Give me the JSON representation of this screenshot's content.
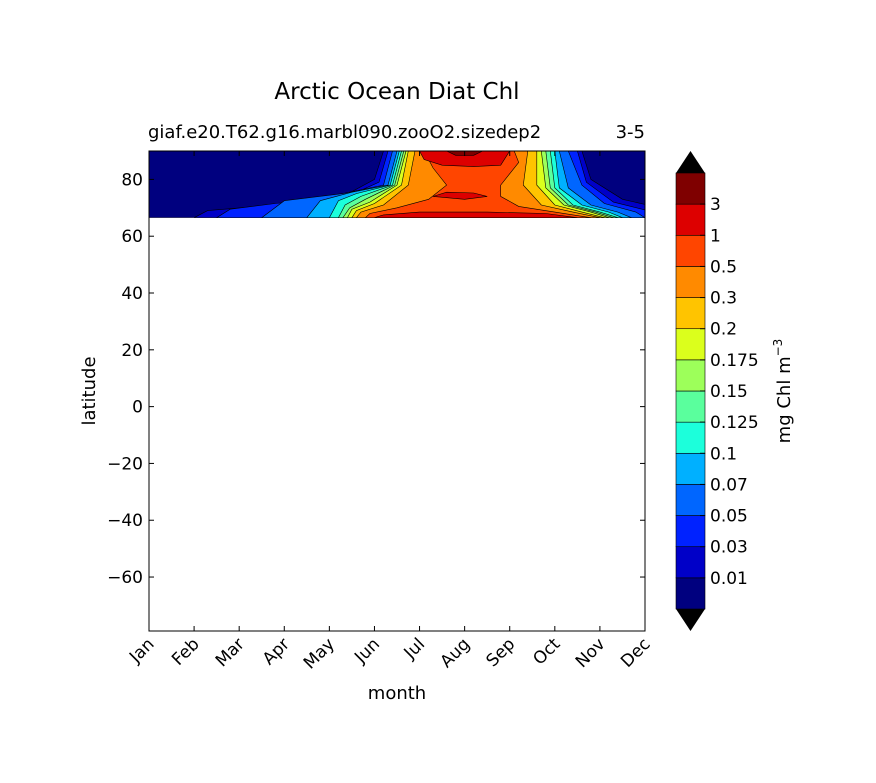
{
  "chart_data": {
    "type": "heatmap",
    "title": "Arctic Ocean Diat Chl",
    "subtitle_left": "giaf.e20.T62.g16.marbl090.zooO2.sizedep2",
    "subtitle_right": "3-5",
    "xlabel": "month",
    "ylabel": "latitude",
    "colorbar_label": "mg Chl m",
    "colorbar_label_exp": "−3",
    "x_ticks": [
      "Jan",
      "Feb",
      "Mar",
      "Apr",
      "May",
      "Jun",
      "Jul",
      "Aug",
      "Sep",
      "Oct",
      "Nov",
      "Dec"
    ],
    "y_ticks": [
      "80",
      "60",
      "40",
      "20",
      "0",
      "−20",
      "−40",
      "−60"
    ],
    "y_tick_values": [
      80,
      60,
      40,
      20,
      0,
      -20,
      -40,
      -60
    ],
    "ylim": [
      -79,
      90
    ],
    "data_lat_range": [
      66.5,
      90
    ],
    "levels": [
      "0.01",
      "0.03",
      "0.05",
      "0.07",
      "0.1",
      "0.125",
      "0.15",
      "0.175",
      "0.2",
      "0.3",
      "0.5",
      "1",
      "3"
    ],
    "colors": [
      "#00007f",
      "#0000c8",
      "#0022ff",
      "#0066ff",
      "#00b0ff",
      "#1cffdb",
      "#5aff9d",
      "#9dff5a",
      "#dbff1c",
      "#ffc400",
      "#ff8a00",
      "#ff4500",
      "#dd0000",
      "#7f0000"
    ],
    "extend_colors": {
      "under": "#000000",
      "over": "#000000"
    },
    "contours": [
      {
        "level_index": 0,
        "points": [
          [
            0,
            66.5
          ],
          [
            12,
            66.5
          ],
          [
            12,
            90
          ],
          [
            0,
            90
          ]
        ]
      },
      {
        "level_index": 1,
        "points": [
          [
            1,
            66.5
          ],
          [
            11.6,
            66.5
          ],
          [
            11.6,
            69
          ],
          [
            10.5,
            73
          ],
          [
            9.8,
            80
          ],
          [
            9.6,
            90
          ],
          [
            5.2,
            90
          ],
          [
            5.0,
            80
          ],
          [
            4.3,
            74
          ],
          [
            2.8,
            71
          ],
          [
            1.3,
            69
          ]
        ]
      },
      {
        "level_index": 2,
        "points": [
          [
            1.5,
            66.5
          ],
          [
            11.3,
            66.5
          ],
          [
            11.2,
            68.5
          ],
          [
            10.3,
            72
          ],
          [
            9.7,
            79
          ],
          [
            9.5,
            90
          ],
          [
            5.3,
            90
          ],
          [
            5.1,
            79
          ],
          [
            4.4,
            74
          ],
          [
            2.8,
            71.5
          ],
          [
            1.8,
            69.5
          ]
        ]
      },
      {
        "level_index": 3,
        "points": [
          [
            2.5,
            66.5
          ],
          [
            11.0,
            66.5
          ],
          [
            10.8,
            68.5
          ],
          [
            10.1,
            71.5
          ],
          [
            9.6,
            78
          ],
          [
            9.3,
            90
          ],
          [
            5.4,
            90
          ],
          [
            5.2,
            78
          ],
          [
            4.3,
            75
          ],
          [
            3.0,
            72.5
          ]
        ]
      },
      {
        "level_index": 4,
        "points": [
          [
            3.5,
            66.5
          ],
          [
            10.7,
            66.5
          ],
          [
            10.4,
            68.5
          ],
          [
            9.8,
            71
          ],
          [
            9.3,
            77
          ],
          [
            9.1,
            90
          ],
          [
            5.5,
            90
          ],
          [
            5.3,
            78
          ],
          [
            4.5,
            75.5
          ],
          [
            3.8,
            72.5
          ]
        ]
      },
      {
        "level_index": 5,
        "points": [
          [
            4.0,
            66.5
          ],
          [
            10.5,
            66.5
          ],
          [
            10.2,
            68.5
          ],
          [
            9.6,
            71
          ],
          [
            9.1,
            77
          ],
          [
            9.0,
            90
          ],
          [
            5.55,
            90
          ],
          [
            5.35,
            78
          ],
          [
            4.6,
            75
          ],
          [
            4.2,
            72.5
          ]
        ]
      },
      {
        "level_index": 6,
        "points": [
          [
            4.2,
            66.5
          ],
          [
            10.4,
            66.5
          ],
          [
            10.0,
            68.5
          ],
          [
            9.4,
            71
          ],
          [
            9.0,
            77
          ],
          [
            8.9,
            90
          ],
          [
            5.6,
            90
          ],
          [
            5.4,
            78
          ],
          [
            4.7,
            74
          ],
          [
            4.35,
            71
          ]
        ]
      },
      {
        "level_index": 7,
        "points": [
          [
            4.3,
            66.5
          ],
          [
            10.3,
            66.5
          ],
          [
            9.9,
            68.5
          ],
          [
            9.3,
            71
          ],
          [
            8.9,
            77
          ],
          [
            8.8,
            90
          ],
          [
            5.65,
            90
          ],
          [
            5.45,
            78
          ],
          [
            4.8,
            73
          ],
          [
            4.45,
            70
          ]
        ]
      },
      {
        "level_index": 8,
        "points": [
          [
            4.4,
            66.5
          ],
          [
            10.2,
            66.5
          ],
          [
            9.8,
            68.5
          ],
          [
            9.2,
            71
          ],
          [
            8.8,
            77
          ],
          [
            8.7,
            90
          ],
          [
            5.7,
            90
          ],
          [
            5.5,
            78
          ],
          [
            4.9,
            72
          ],
          [
            4.5,
            69.5
          ]
        ]
      },
      {
        "level_index": 9,
        "points": [
          [
            4.5,
            66.5
          ],
          [
            10.1,
            66.5
          ],
          [
            9.6,
            68.5
          ],
          [
            9.0,
            71
          ],
          [
            8.6,
            78
          ],
          [
            8.6,
            90
          ],
          [
            5.75,
            90
          ],
          [
            5.6,
            78
          ],
          [
            5.0,
            71.5
          ],
          [
            4.6,
            69
          ]
        ]
      },
      {
        "level_index": 10,
        "points": [
          [
            4.6,
            66.5
          ],
          [
            10.0,
            66.5
          ],
          [
            9.4,
            68.5
          ],
          [
            8.7,
            71
          ],
          [
            8.3,
            78
          ],
          [
            8.4,
            90
          ],
          [
            5.9,
            90
          ],
          [
            5.75,
            78
          ],
          [
            5.2,
            71
          ],
          [
            4.7,
            68.5
          ]
        ]
      },
      {
        "level_index": 11,
        "points": [
          [
            4.8,
            66.5
          ],
          [
            9.8,
            66.5
          ],
          [
            9.0,
            68.5
          ],
          [
            8.2,
            70.5
          ],
          [
            7.8,
            74
          ],
          [
            7.8,
            78
          ],
          [
            8.2,
            86
          ],
          [
            8.1,
            90
          ],
          [
            6.1,
            90
          ],
          [
            6.3,
            84
          ],
          [
            6.6,
            78
          ],
          [
            6.2,
            73
          ],
          [
            5.5,
            70
          ],
          [
            4.9,
            68
          ]
        ]
      },
      {
        "level_index": 12,
        "points": [
          [
            5.0,
            66.5
          ],
          [
            9.5,
            66.5
          ],
          [
            8.8,
            68
          ],
          [
            7.5,
            68.5
          ],
          [
            6.0,
            68.5
          ],
          [
            5.2,
            67.5
          ]
        ]
      },
      {
        "level_index": 12,
        "points": [
          [
            6.0,
            90
          ],
          [
            8.0,
            90
          ],
          [
            7.8,
            85
          ],
          [
            7.2,
            84.5
          ],
          [
            6.5,
            85
          ],
          [
            6.1,
            87
          ]
        ]
      },
      {
        "level_index": 12,
        "points": [
          [
            6.3,
            74
          ],
          [
            6.6,
            75.5
          ],
          [
            7.2,
            75.2
          ],
          [
            7.5,
            74
          ],
          [
            7.0,
            73
          ]
        ]
      },
      {
        "level_index": 13,
        "points": [
          [
            6.6,
            90
          ],
          [
            7.4,
            90
          ],
          [
            7.2,
            88.5
          ],
          [
            6.8,
            88.5
          ]
        ]
      }
    ]
  }
}
